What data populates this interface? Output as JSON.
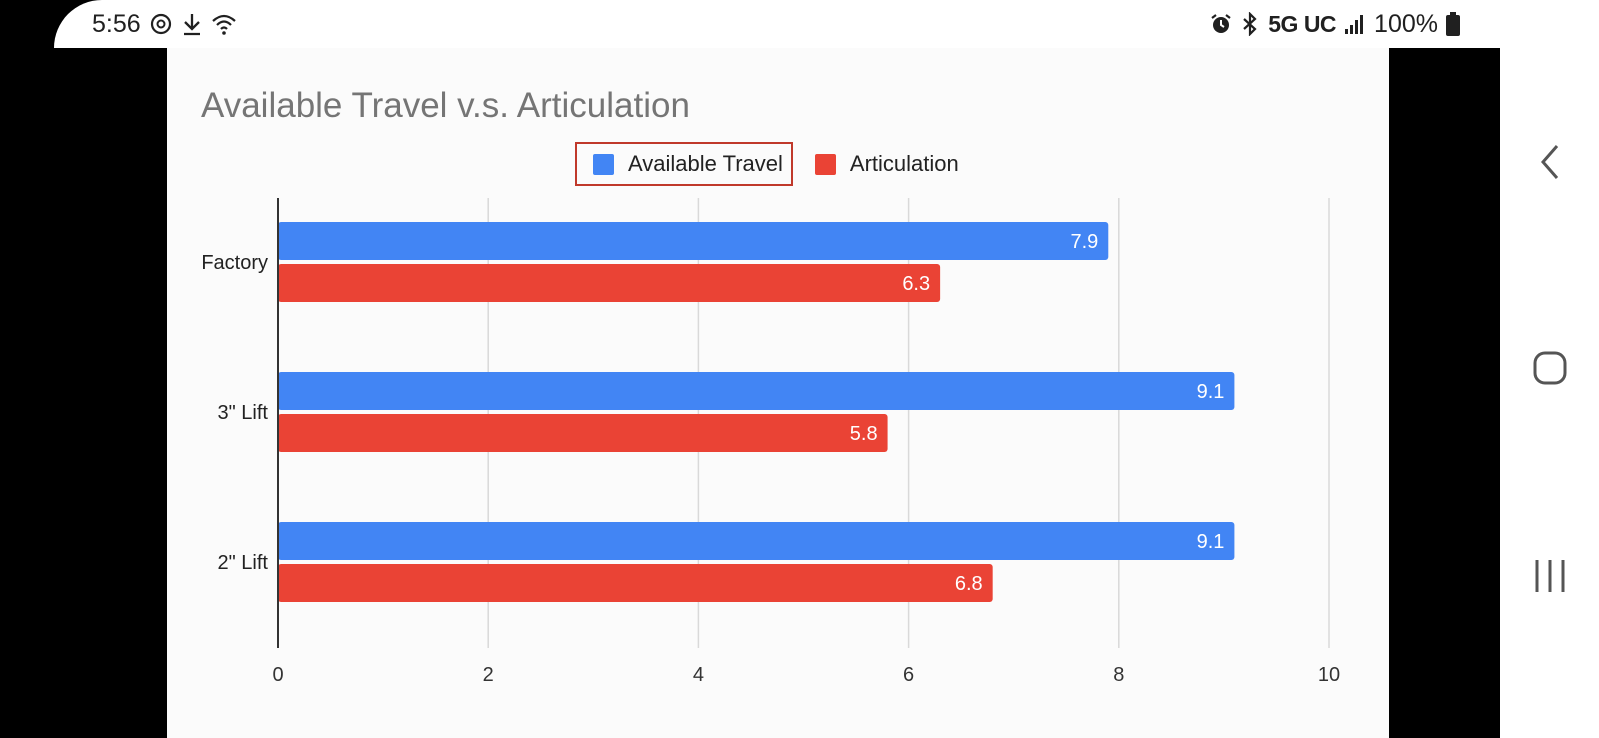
{
  "status_bar": {
    "time": "5:56",
    "left_icons": [
      "focus-mode-icon",
      "download-icon",
      "wifi-icon"
    ],
    "right_icons": [
      "alarm-icon",
      "bluetooth-icon",
      "signal-icon",
      "battery-icon"
    ],
    "network": "5G UC",
    "battery": "100%"
  },
  "nav_bar": {
    "buttons": [
      "back-icon",
      "home-icon",
      "recents-icon"
    ]
  },
  "colors": {
    "available_travel": "#4285f4",
    "articulation": "#ea4335",
    "legend_highlight": "#c0392b"
  },
  "chart_data": {
    "type": "bar",
    "orientation": "horizontal",
    "title": "Available Travel v.s. Articulation",
    "categories": [
      "Factory",
      "3\" Lift",
      "2\" Lift"
    ],
    "series": [
      {
        "name": "Available Travel",
        "values": [
          7.9,
          9.1,
          9.1
        ],
        "color": "#4285f4"
      },
      {
        "name": "Articulation",
        "values": [
          6.3,
          5.8,
          6.8
        ],
        "color": "#ea4335"
      }
    ],
    "x_ticks": [
      "0",
      "2",
      "4",
      "6",
      "8",
      "10"
    ],
    "xlim": [
      0,
      10
    ],
    "grid": true,
    "legend_position": "top-center",
    "data_labels": true
  }
}
